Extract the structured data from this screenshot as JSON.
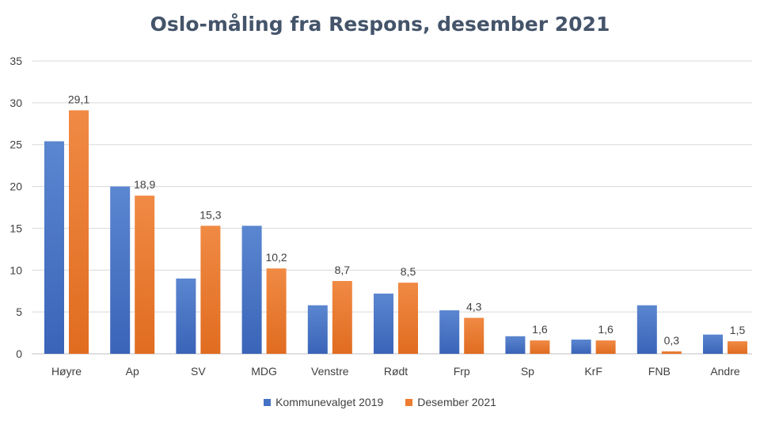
{
  "chart_data": {
    "type": "bar",
    "title": "Oslo-måling fra Respons, desember 2021",
    "xlabel": "",
    "ylabel": "",
    "ylim": [
      0,
      35
    ],
    "yticks": [
      0,
      5,
      10,
      15,
      20,
      25,
      30,
      35
    ],
    "grid": true,
    "legend_position": "bottom",
    "categories": [
      "Høyre",
      "Ap",
      "SV",
      "MDG",
      "Venstre",
      "Rødt",
      "Frp",
      "Sp",
      "KrF",
      "FNB",
      "Andre"
    ],
    "series": [
      {
        "name": "Kommunevalget 2019",
        "color": "#4472c4",
        "values": [
          25.4,
          20.0,
          9.0,
          15.3,
          5.8,
          7.2,
          5.2,
          2.1,
          1.7,
          5.8,
          2.3
        ],
        "labels": [
          "",
          "",
          "",
          "",
          "",
          "",
          "",
          "",
          "",
          "",
          ""
        ]
      },
      {
        "name": "Desember 2021",
        "color": "#ed7d31",
        "values": [
          29.1,
          18.9,
          15.3,
          10.2,
          8.7,
          8.5,
          4.3,
          1.6,
          1.6,
          0.3,
          1.5
        ],
        "labels": [
          "29,1",
          "18,9",
          "15,3",
          "10,2",
          "8,7",
          "8,5",
          "4,3",
          "1,6",
          "1,6",
          "0,3",
          "1,5"
        ]
      }
    ]
  }
}
